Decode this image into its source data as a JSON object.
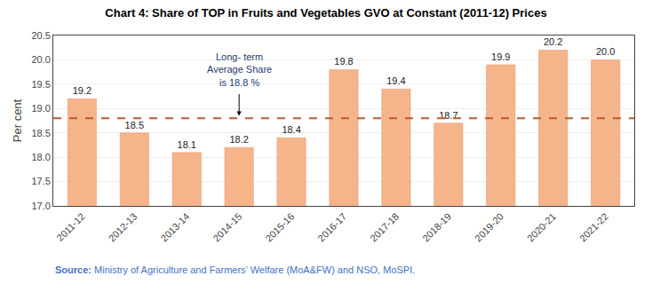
{
  "chart_data": {
    "type": "bar",
    "title": "Chart 4: Share of TOP in Fruits and Vegetables GVO at Constant (2011-12) Prices",
    "categories": [
      "2011-12",
      "2012-13",
      "2013-14",
      "2014-15",
      "2015-16",
      "2016-17",
      "2017-18",
      "2018-19",
      "2019-20",
      "2020-21",
      "2021-22"
    ],
    "values": [
      19.2,
      18.5,
      18.1,
      18.2,
      18.4,
      19.8,
      19.4,
      18.7,
      19.9,
      20.2,
      20.0
    ],
    "value_labels": [
      "19.2",
      "18.5",
      "18.1",
      "18.2",
      "18.4",
      "19.8",
      "19.4",
      "18.7",
      "19.9",
      "20.2",
      "20.0"
    ],
    "data_labels": true,
    "color": "#F5B48A",
    "ylabel": "Per cent",
    "ylim": [
      17.0,
      20.5
    ],
    "yticks": [
      {
        "value": 17,
        "label": "17.0"
      },
      17.5,
      {
        "value": 18,
        "label": "18.0"
      },
      18.5,
      {
        "value": 19,
        "label": "19.0"
      },
      19.5,
      {
        "value": 20,
        "label": "20.0"
      },
      20.5
    ],
    "grid": true,
    "reference_lines": [
      {
        "y": 18.8,
        "color": "#C05A1F",
        "line_style": "dashed"
      }
    ],
    "annotations": [
      {
        "text": "Long- term\nAverage Share\nis 18.8 %",
        "x": "2014-15",
        "y": 20.2,
        "arrow_y": 18.85,
        "color": "#1F3C6E"
      }
    ],
    "source_label": "Source:",
    "source": "Ministry of Agriculture and Farmers’ Welfare (MoA&FW) and NSO, MoSPI.",
    "source_color": "#4472C4"
  }
}
